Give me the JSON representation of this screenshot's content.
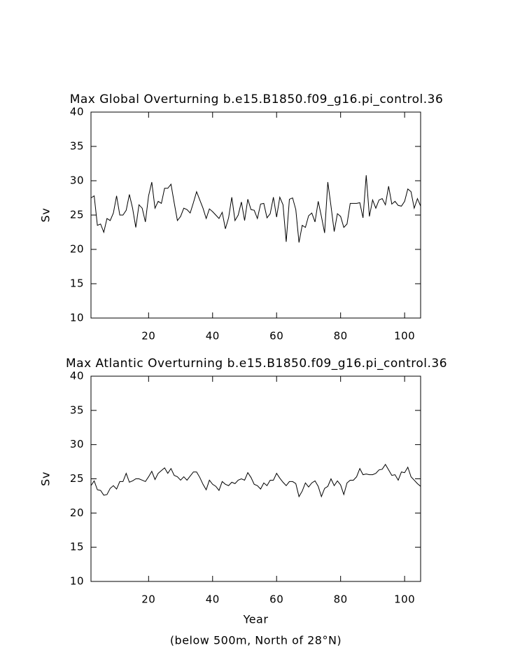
{
  "chart_data": [
    {
      "type": "line",
      "title": "Max Global Overturning b.e15.B1850.f09_g16.pi_control.36",
      "y_label": "Sv",
      "xlim": [
        2,
        105
      ],
      "xticks": [
        20,
        40,
        60,
        80,
        100
      ],
      "ylim": [
        10,
        40
      ],
      "yticks": [
        10,
        15,
        20,
        25,
        30,
        35,
        40
      ],
      "x": [
        2,
        3,
        4,
        5,
        6,
        7,
        8,
        9,
        10,
        11,
        12,
        13,
        14,
        15,
        16,
        17,
        18,
        19,
        20,
        21,
        22,
        23,
        24,
        25,
        26,
        27,
        28,
        29,
        30,
        31,
        32,
        33,
        34,
        35,
        36,
        37,
        38,
        39,
        40,
        41,
        42,
        43,
        44,
        45,
        46,
        47,
        48,
        49,
        50,
        51,
        52,
        53,
        54,
        55,
        56,
        57,
        58,
        59,
        60,
        61,
        62,
        63,
        64,
        65,
        66,
        67,
        68,
        69,
        70,
        71,
        72,
        73,
        74,
        75,
        76,
        77,
        78,
        79,
        80,
        81,
        82,
        83,
        84,
        85,
        86,
        87,
        88,
        89,
        90,
        91,
        92,
        93,
        94,
        95,
        96,
        97,
        98,
        99,
        100,
        101,
        102,
        103,
        104,
        105
      ],
      "series": [
        {
          "color": "#000000",
          "values": [
            27.5,
            27.8,
            23.5,
            23.7,
            22.5,
            24.5,
            24.2,
            25.3,
            27.8,
            25.0,
            25.0,
            25.7,
            28.0,
            26.0,
            23.2,
            26.5,
            26.0,
            24.0,
            27.8,
            29.8,
            26.0,
            27.0,
            26.7,
            28.9,
            28.9,
            29.5,
            26.8,
            24.2,
            24.8,
            26.0,
            25.8,
            25.3,
            26.8,
            28.4,
            27.2,
            26.0,
            24.5,
            25.9,
            25.5,
            25.0,
            24.5,
            25.4,
            23.0,
            24.6,
            27.6,
            24.2,
            25.0,
            26.9,
            24.2,
            27.3,
            25.8,
            25.7,
            24.5,
            26.6,
            26.7,
            24.6,
            25.2,
            27.6,
            24.7,
            27.6,
            26.5,
            21.1,
            27.3,
            27.5,
            25.8,
            21.0,
            23.5,
            23.2,
            24.9,
            25.3,
            24.0,
            27.0,
            24.8,
            22.4,
            29.8,
            26.3,
            22.6,
            25.2,
            24.8,
            23.2,
            23.7,
            26.7,
            26.7,
            26.7,
            26.8,
            24.6,
            30.8,
            24.8,
            27.2,
            26.0,
            27.2,
            27.4,
            26.5,
            29.2,
            26.6,
            27.0,
            26.4,
            26.3,
            27.0,
            28.8,
            28.4,
            26.0,
            27.4,
            26.3
          ]
        }
      ]
    },
    {
      "type": "line",
      "title": "Max Atlantic Overturning b.e15.B1850.f09_g16.pi_control.36",
      "y_label": "Sv",
      "x_label": "Year",
      "note": "(below 500m, North of 28°N)",
      "xlim": [
        2,
        105
      ],
      "xticks": [
        20,
        40,
        60,
        80,
        100
      ],
      "ylim": [
        10,
        40
      ],
      "yticks": [
        10,
        15,
        20,
        25,
        30,
        35,
        40
      ],
      "x": [
        2,
        3,
        4,
        5,
        6,
        7,
        8,
        9,
        10,
        11,
        12,
        13,
        14,
        15,
        16,
        17,
        18,
        19,
        20,
        21,
        22,
        23,
        24,
        25,
        26,
        27,
        28,
        29,
        30,
        31,
        32,
        33,
        34,
        35,
        36,
        37,
        38,
        39,
        40,
        41,
        42,
        43,
        44,
        45,
        46,
        47,
        48,
        49,
        50,
        51,
        52,
        53,
        54,
        55,
        56,
        57,
        58,
        59,
        60,
        61,
        62,
        63,
        64,
        65,
        66,
        67,
        68,
        69,
        70,
        71,
        72,
        73,
        74,
        75,
        76,
        77,
        78,
        79,
        80,
        81,
        82,
        83,
        84,
        85,
        86,
        87,
        88,
        89,
        90,
        91,
        92,
        93,
        94,
        95,
        96,
        97,
        98,
        99,
        100,
        101,
        102,
        103,
        104,
        105
      ],
      "series": [
        {
          "color": "#000000",
          "values": [
            24.0,
            24.7,
            23.4,
            23.3,
            22.6,
            22.7,
            23.6,
            24.0,
            23.5,
            24.6,
            24.6,
            25.8,
            24.5,
            24.7,
            25.0,
            25.0,
            24.8,
            24.6,
            25.3,
            26.1,
            24.9,
            25.8,
            26.2,
            26.6,
            25.8,
            26.5,
            25.5,
            25.3,
            24.8,
            25.3,
            24.8,
            25.4,
            26.0,
            26.0,
            25.2,
            24.2,
            23.4,
            24.8,
            24.2,
            23.9,
            23.3,
            24.6,
            24.2,
            24.0,
            24.5,
            24.3,
            24.8,
            25.0,
            24.8,
            25.9,
            25.2,
            24.2,
            24.0,
            23.5,
            24.4,
            24.0,
            24.8,
            24.8,
            25.8,
            25.1,
            24.5,
            24.0,
            24.6,
            24.6,
            24.3,
            22.4,
            23.2,
            24.4,
            23.8,
            24.4,
            24.7,
            23.9,
            22.4,
            23.6,
            23.9,
            25.0,
            24.0,
            24.7,
            24.1,
            22.7,
            24.4,
            24.8,
            24.8,
            25.3,
            26.5,
            25.6,
            25.7,
            25.6,
            25.6,
            25.8,
            26.3,
            26.4,
            27.1,
            26.3,
            25.5,
            25.6,
            24.8,
            26.0,
            25.9,
            26.7,
            25.3,
            24.8,
            24.3,
            23.9
          ]
        }
      ]
    }
  ]
}
